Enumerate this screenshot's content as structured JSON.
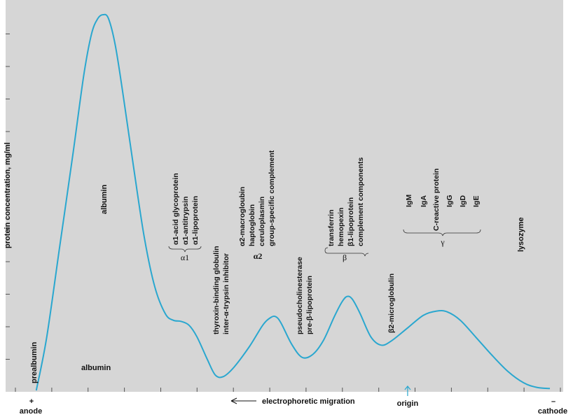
{
  "chart_data": {
    "type": "line",
    "title": "",
    "ylabel": "protein concentration, mg/ml",
    "xlabel": "electrophoretic migration",
    "x_left_label": "anode",
    "x_left_sign": "+",
    "x_right_label": "cathode",
    "x_right_sign": "–",
    "origin_label": "origin",
    "grid": false,
    "colors": {
      "curve": "#2aa7cf",
      "background": "#d6d6d6",
      "arrow": "#2aa7cf",
      "axis": "#333333"
    },
    "xlim": [
      0,
      100
    ],
    "ylim": [
      0,
      100
    ],
    "x_tick_count": 16,
    "y_tick_count": 11,
    "origin_x": 71,
    "series": [
      {
        "points": [
          [
            0.5,
            0
          ],
          [
            2.5,
            14
          ],
          [
            5,
            38
          ],
          [
            7.5,
            62
          ],
          [
            9.5,
            82
          ],
          [
            11,
            93
          ],
          [
            12.2,
            97
          ],
          [
            13.2,
            98
          ],
          [
            14.2,
            97
          ],
          [
            15.5,
            90
          ],
          [
            17,
            77
          ],
          [
            19,
            58
          ],
          [
            21,
            40
          ],
          [
            23,
            27
          ],
          [
            25,
            20
          ],
          [
            26.5,
            18.3
          ],
          [
            28,
            18
          ],
          [
            29.5,
            17
          ],
          [
            31,
            14
          ],
          [
            33,
            8
          ],
          [
            34.5,
            4
          ],
          [
            36,
            3.6
          ],
          [
            38,
            6
          ],
          [
            41,
            11.5
          ],
          [
            43.5,
            17
          ],
          [
            45,
            19
          ],
          [
            46,
            19.2
          ],
          [
            47,
            17.5
          ],
          [
            49,
            12
          ],
          [
            51,
            8.6
          ],
          [
            53,
            9.4
          ],
          [
            55,
            13
          ],
          [
            57,
            19
          ],
          [
            58.5,
            23
          ],
          [
            59.5,
            24.5
          ],
          [
            60.5,
            23.8
          ],
          [
            62,
            20
          ],
          [
            64,
            14
          ],
          [
            66,
            11.8
          ],
          [
            68,
            13
          ],
          [
            71,
            16.3
          ],
          [
            74,
            19.6
          ],
          [
            76.5,
            20.7
          ],
          [
            78.5,
            20.5
          ],
          [
            81,
            18.3
          ],
          [
            84,
            13.8
          ],
          [
            87,
            9.2
          ],
          [
            90,
            5
          ],
          [
            93,
            2
          ],
          [
            95.5,
            0.8
          ],
          [
            98,
            0.5
          ]
        ]
      }
    ],
    "annotations": {
      "prealbumin": "prealbumin",
      "albumin_top": "albumin",
      "albumin_bottom": "albumin",
      "alpha1_items": [
        "α1-acid glycoprotein",
        "α1-antitrypsin",
        "α1-lipoprotein"
      ],
      "alpha1_group": "α1",
      "thyroxin": [
        "thyroxin-binding globulin",
        "inter-α-trypsin inhibitor"
      ],
      "alpha2_items": [
        "α2-macrogloubin",
        "haptoglobin",
        "ceruloplasmin",
        "group-specific complement"
      ],
      "alpha2_group": "α2",
      "pseudo": [
        "pseudocholinesterase",
        "pre-β-lipoprotein"
      ],
      "beta_items": [
        "transferrin",
        "hemopexin",
        "β1-lipoprotein",
        "complement components"
      ],
      "beta_group": "β",
      "beta2": "β2-microglobulin",
      "gamma_items": [
        "IgM",
        "IgA",
        "C-reactive protein",
        "IgG",
        "IgD",
        "IgE"
      ],
      "gamma_group": "γ",
      "lysozyme": "lysozyme"
    }
  }
}
